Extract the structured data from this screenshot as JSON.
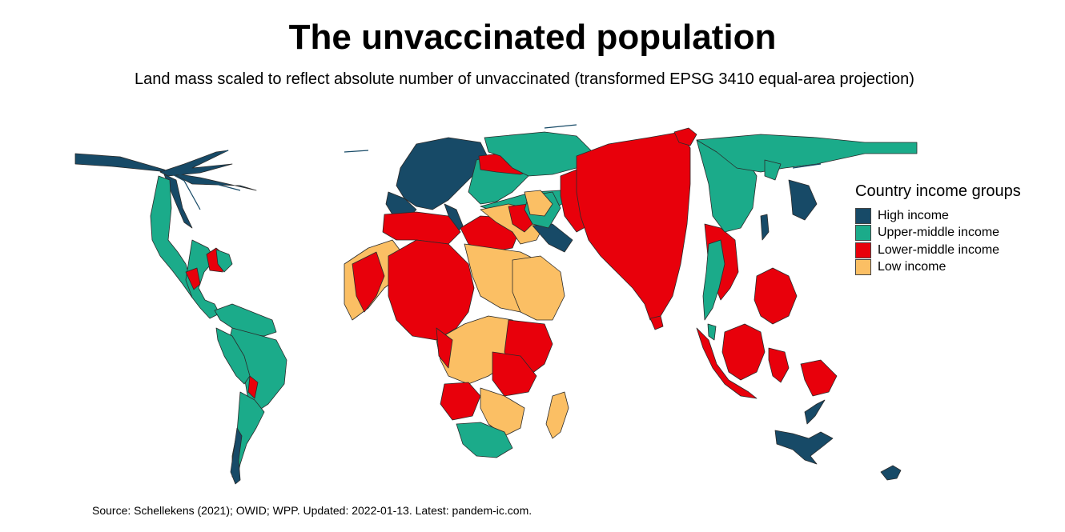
{
  "title": "The unvaccinated population",
  "subtitle": "Land mass scaled to reflect absolute number of unvaccinated (transformed EPSG 3410 equal-area projection)",
  "legend": {
    "title": "Country income groups",
    "items": [
      {
        "label": "High income",
        "color": "#174a67"
      },
      {
        "label": "Upper-middle income",
        "color": "#1bab8a"
      },
      {
        "label": "Lower-middle income",
        "color": "#e8000b"
      },
      {
        "label": "Low income",
        "color": "#fbbf64"
      }
    ]
  },
  "source": "Source: Schellekens (2021); OWID; WPP. Updated: 2022-01-13. Latest: pandem-ic.com."
}
